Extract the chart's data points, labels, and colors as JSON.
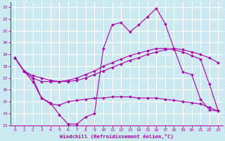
{
  "xlabel": "Windchill (Refroidissement éolien,°C)",
  "background_color": "#cce8f0",
  "grid_color": "#ffffff",
  "line_color": "#aa00aa",
  "xlim": [
    -0.5,
    23.5
  ],
  "ylim": [
    13,
    23.4
  ],
  "yticks": [
    13,
    14,
    15,
    16,
    17,
    18,
    19,
    20,
    21,
    22,
    23
  ],
  "xticks": [
    0,
    1,
    2,
    3,
    4,
    5,
    6,
    7,
    8,
    9,
    10,
    11,
    12,
    13,
    14,
    15,
    16,
    17,
    18,
    19,
    20,
    21,
    22,
    23
  ],
  "line1_x": [
    0,
    1,
    2,
    3,
    4,
    5,
    6,
    7,
    8,
    9,
    10,
    11,
    12,
    13,
    14,
    15,
    16,
    17,
    18,
    19,
    20,
    21,
    22,
    23
  ],
  "line1_y": [
    18.7,
    17.6,
    17.2,
    17.0,
    16.8,
    16.7,
    16.7,
    16.8,
    17.0,
    17.3,
    17.6,
    17.9,
    18.2,
    18.5,
    18.7,
    19.0,
    19.2,
    19.4,
    19.5,
    19.4,
    19.2,
    19.0,
    18.7,
    18.3
  ],
  "line2_x": [
    0,
    1,
    2,
    3,
    4,
    5,
    6,
    7,
    8,
    9,
    10,
    11,
    12,
    13,
    14,
    15,
    16,
    17,
    18,
    19,
    20,
    21,
    22,
    23
  ],
  "line2_y": [
    18.7,
    17.6,
    16.7,
    15.3,
    14.9,
    13.9,
    13.1,
    13.1,
    13.7,
    14.0,
    19.5,
    21.5,
    21.7,
    20.9,
    21.5,
    22.2,
    22.9,
    21.6,
    19.5,
    17.5,
    17.3,
    15.2,
    14.3,
    14.2
  ],
  "line3_x": [
    0,
    1,
    2,
    3,
    4,
    5,
    6,
    7,
    8,
    9,
    10,
    11,
    12,
    13,
    14,
    15,
    16,
    17,
    18,
    19,
    20,
    21,
    22,
    23
  ],
  "line3_y": [
    18.7,
    17.6,
    17.0,
    15.3,
    14.8,
    14.7,
    15.0,
    15.1,
    15.2,
    15.3,
    15.3,
    15.4,
    15.4,
    15.4,
    15.3,
    15.3,
    15.3,
    15.2,
    15.1,
    15.0,
    14.9,
    14.8,
    14.5,
    14.2
  ],
  "line4_x": [
    0,
    1,
    2,
    3,
    4,
    5,
    6,
    7,
    8,
    9,
    10,
    11,
    12,
    13,
    14,
    15,
    16,
    17,
    18,
    19,
    20,
    21,
    22,
    23
  ],
  "line4_y": [
    18.7,
    17.6,
    17.0,
    16.7,
    16.7,
    16.7,
    16.8,
    17.0,
    17.3,
    17.6,
    18.0,
    18.3,
    18.6,
    18.9,
    19.1,
    19.3,
    19.5,
    19.5,
    19.4,
    19.2,
    18.9,
    18.6,
    16.5,
    14.2
  ]
}
